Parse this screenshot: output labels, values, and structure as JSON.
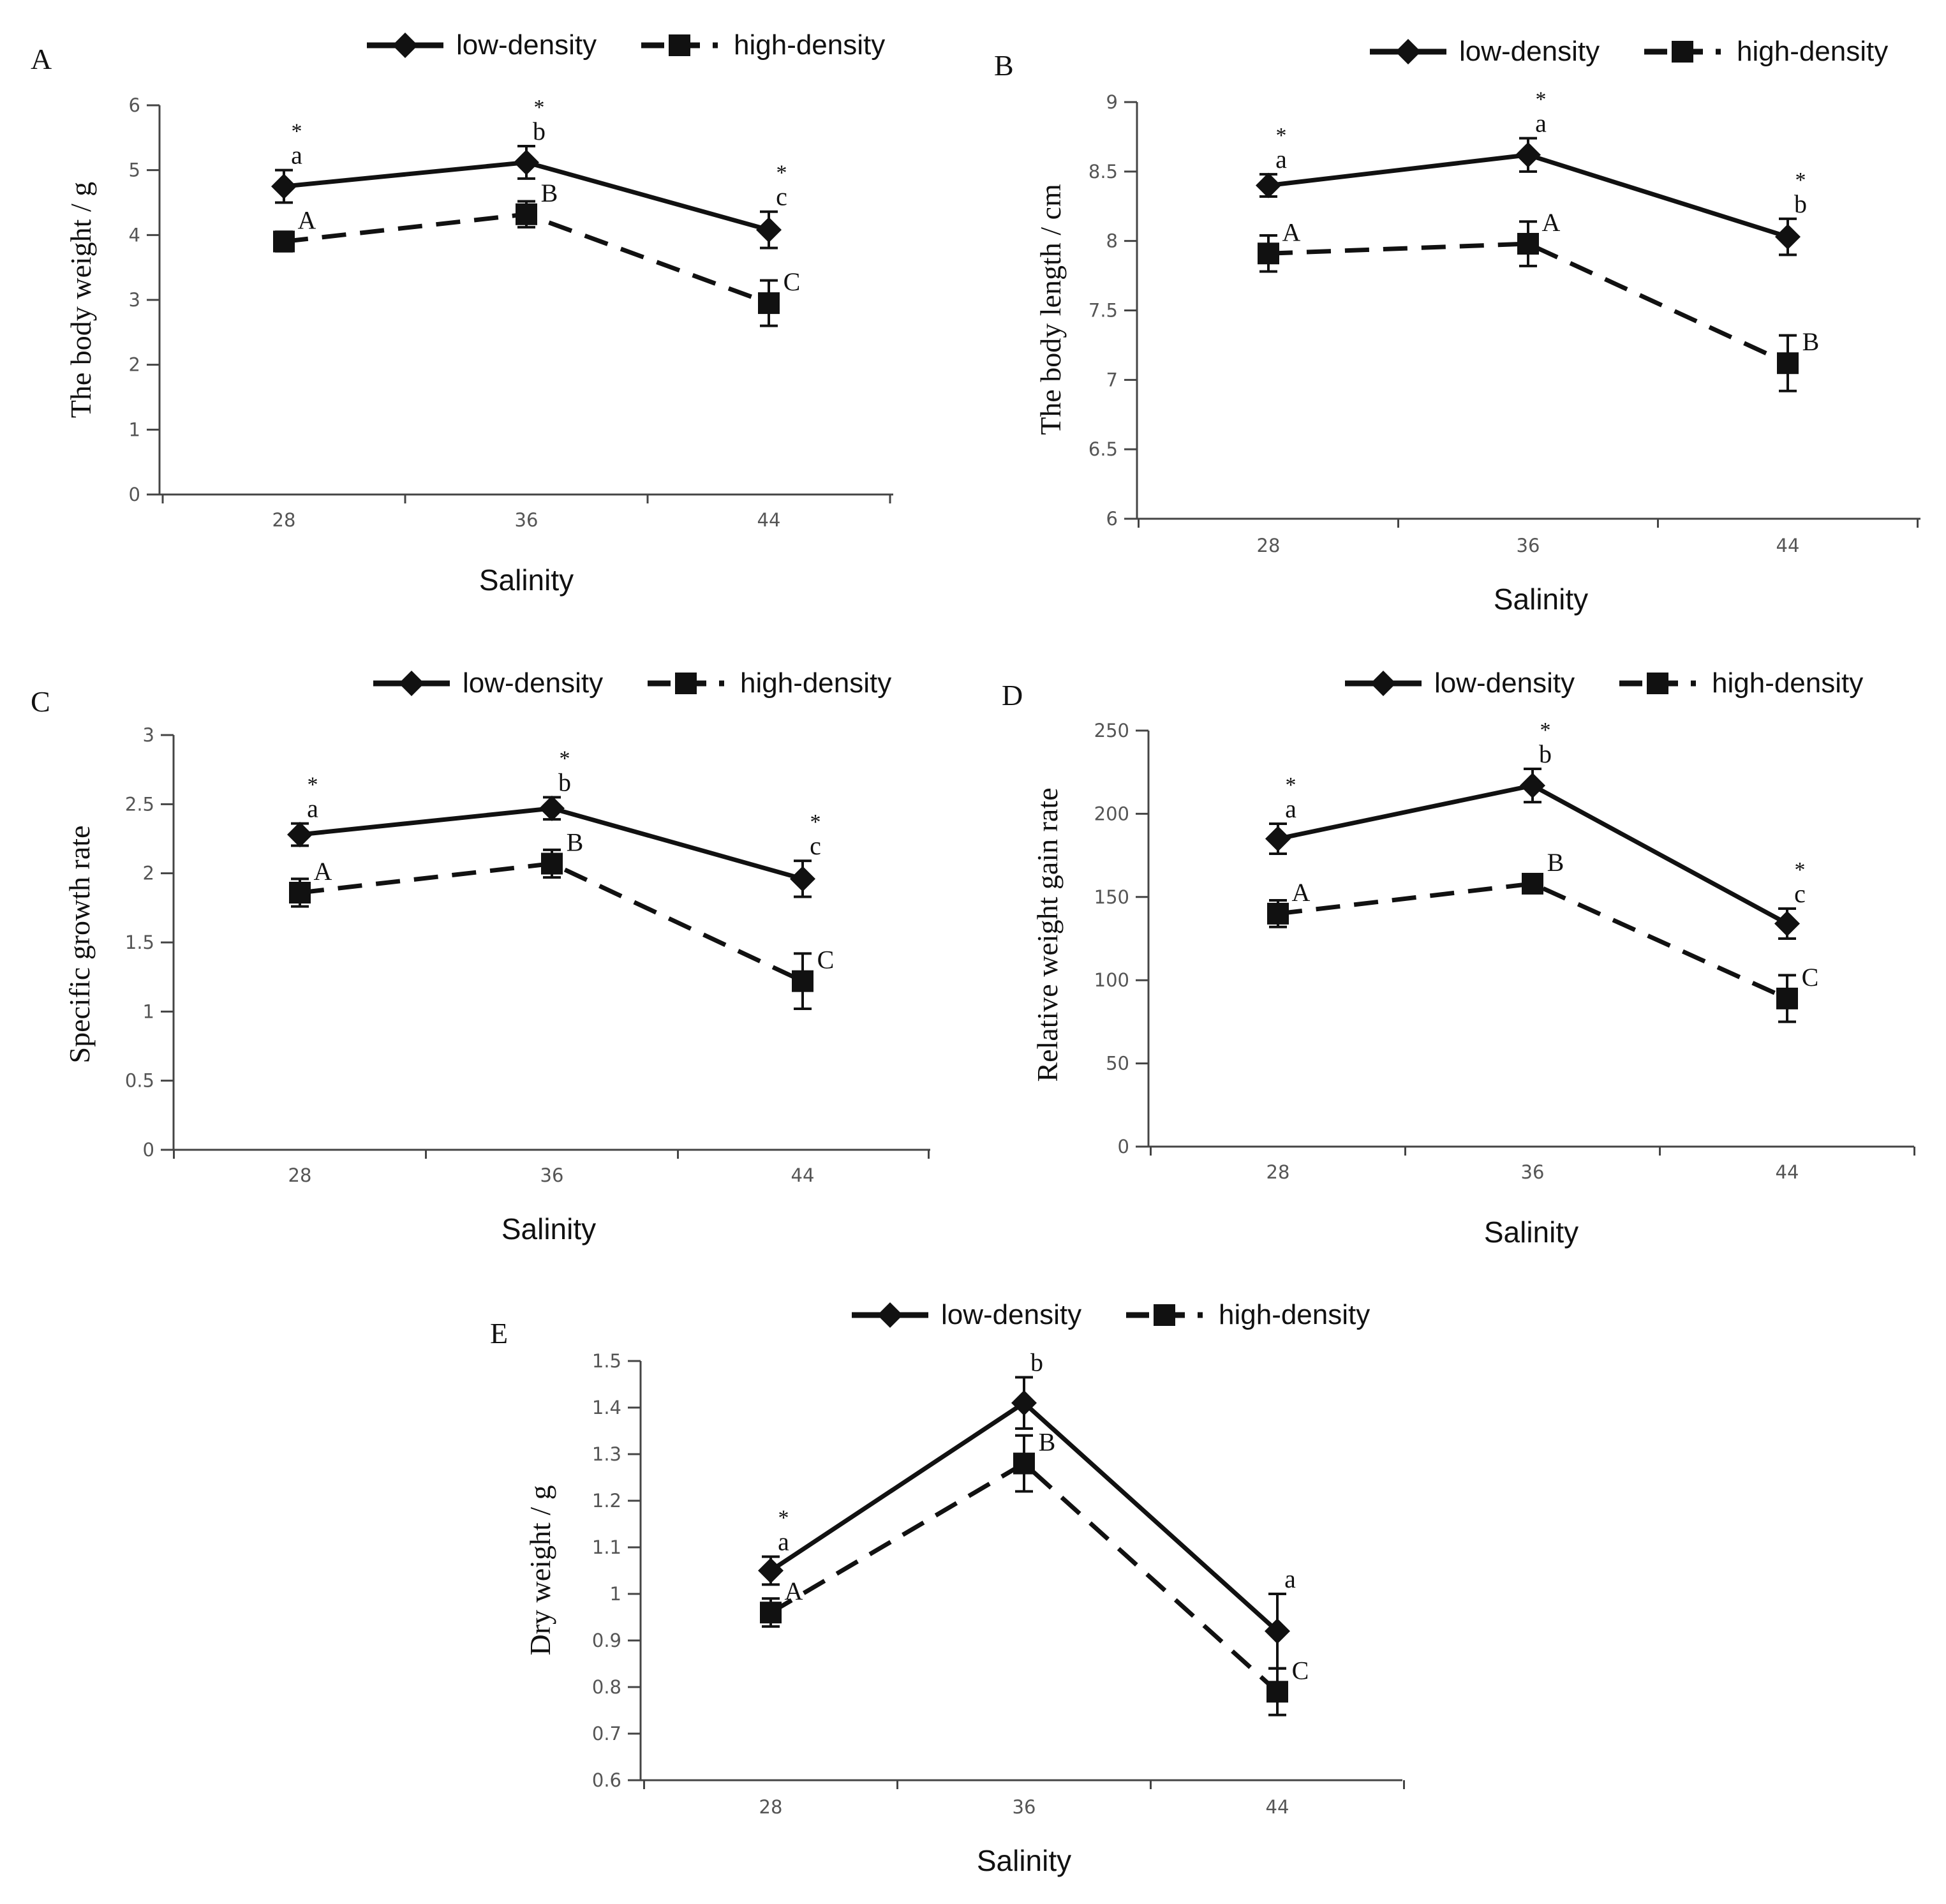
{
  "legend": {
    "low_label": "low-density",
    "high_label": "high-density"
  },
  "chart_data": [
    {
      "panel": "A",
      "type": "line",
      "xlabel": "Salinity",
      "ylabel": "The body weight / g",
      "categories": [
        "28",
        "36",
        "44"
      ],
      "ylim": [
        0,
        6
      ],
      "yticks": [
        "0",
        "1",
        "2",
        "3",
        "4",
        "5",
        "6"
      ],
      "series": [
        {
          "name": "low-density",
          "values": [
            4.75,
            5.12,
            4.08
          ],
          "errors": [
            0.25,
            0.25,
            0.28
          ],
          "labels": [
            "a",
            "b",
            "c"
          ],
          "stars": [
            true,
            true,
            true
          ]
        },
        {
          "name": "high-density",
          "values": [
            3.9,
            4.32,
            2.95
          ],
          "errors": [
            0.15,
            0.2,
            0.35
          ],
          "labels": [
            "A",
            "B",
            "C"
          ],
          "stars": [
            false,
            false,
            false
          ]
        }
      ]
    },
    {
      "panel": "B",
      "type": "line",
      "xlabel": "Salinity",
      "ylabel": "The body length / cm",
      "categories": [
        "28",
        "36",
        "44"
      ],
      "ylim": [
        6,
        9
      ],
      "yticks": [
        "6",
        "6.5",
        "7",
        "7.5",
        "8",
        "8.5",
        "9"
      ],
      "series": [
        {
          "name": "low-density",
          "values": [
            8.4,
            8.62,
            8.03
          ],
          "errors": [
            0.08,
            0.12,
            0.13
          ],
          "labels": [
            "a",
            "a",
            "b"
          ],
          "stars": [
            true,
            true,
            true
          ]
        },
        {
          "name": "high-density",
          "values": [
            7.91,
            7.98,
            7.12
          ],
          "errors": [
            0.13,
            0.16,
            0.2
          ],
          "labels": [
            "A",
            "A",
            "B"
          ],
          "stars": [
            false,
            false,
            false
          ]
        }
      ]
    },
    {
      "panel": "C",
      "type": "line",
      "xlabel": "Salinity",
      "ylabel": "Specific growth rate",
      "categories": [
        "28",
        "36",
        "44"
      ],
      "ylim": [
        0,
        3
      ],
      "yticks": [
        "0",
        "0.5",
        "1",
        "1.5",
        "2",
        "2.5",
        "3"
      ],
      "series": [
        {
          "name": "low-density",
          "values": [
            2.28,
            2.47,
            1.96
          ],
          "errors": [
            0.08,
            0.08,
            0.13
          ],
          "labels": [
            "a",
            "b",
            "c"
          ],
          "stars": [
            true,
            true,
            true
          ]
        },
        {
          "name": "high-density",
          "values": [
            1.86,
            2.07,
            1.22
          ],
          "errors": [
            0.1,
            0.1,
            0.2
          ],
          "labels": [
            "A",
            "B",
            "C"
          ],
          "stars": [
            false,
            false,
            false
          ]
        }
      ]
    },
    {
      "panel": "D",
      "type": "line",
      "xlabel": "Salinity",
      "ylabel": "Relative weight gain rate",
      "categories": [
        "28",
        "36",
        "44"
      ],
      "ylim": [
        0,
        250
      ],
      "yticks": [
        "0",
        "50",
        "100",
        "150",
        "200",
        "250"
      ],
      "series": [
        {
          "name": "low-density",
          "values": [
            185,
            217,
            134
          ],
          "errors": [
            9,
            10,
            9
          ],
          "labels": [
            "a",
            "b",
            "c"
          ],
          "stars": [
            true,
            true,
            true
          ]
        },
        {
          "name": "high-density",
          "values": [
            140,
            158,
            89
          ],
          "errors": [
            8,
            4,
            14
          ],
          "labels": [
            "A",
            "B",
            "C"
          ],
          "stars": [
            false,
            false,
            false
          ]
        }
      ]
    },
    {
      "panel": "E",
      "type": "line",
      "xlabel": "Salinity",
      "ylabel": "Dry weight / g",
      "categories": [
        "28",
        "36",
        "44"
      ],
      "ylim": [
        0.6,
        1.5
      ],
      "yticks": [
        "0.6",
        "0.7",
        "0.8",
        "0.9",
        "1",
        "1.1",
        "1.2",
        "1.3",
        "1.4",
        "1.5"
      ],
      "series": [
        {
          "name": "low-density",
          "values": [
            1.05,
            1.41,
            0.92
          ],
          "errors": [
            0.03,
            0.055,
            0.08
          ],
          "labels": [
            "a",
            "b",
            "a"
          ],
          "stars": [
            true,
            false,
            false
          ]
        },
        {
          "name": "high-density",
          "values": [
            0.96,
            1.28,
            0.79
          ],
          "errors": [
            0.03,
            0.06,
            0.05
          ],
          "labels": [
            "A",
            "B",
            "C"
          ],
          "stars": [
            false,
            false,
            false
          ]
        }
      ]
    }
  ]
}
